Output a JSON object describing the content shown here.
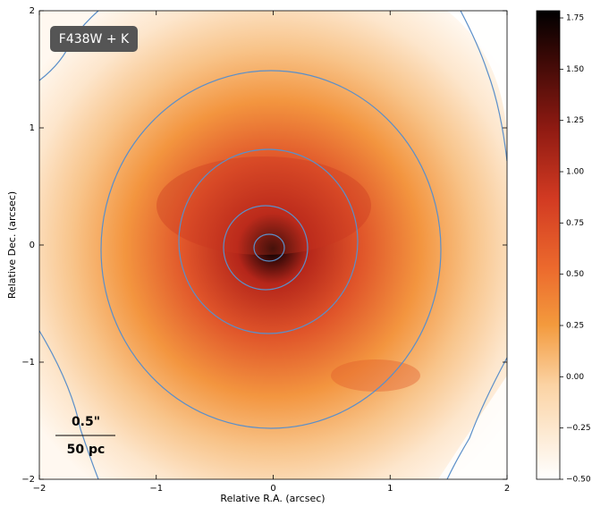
{
  "chart_data": {
    "type": "image",
    "label": "F438W + K",
    "scale_bar": {
      "angle": "0.5\"",
      "length": "50 pc"
    },
    "xlabel": "Relative R.A. (arcsec)",
    "ylabel": "Relative Dec. (arcsec)",
    "xlim": [
      -2,
      2
    ],
    "ylim": [
      -2,
      2
    ],
    "xticks": [
      {
        "value": -2,
        "label": "−2"
      },
      {
        "value": -1,
        "label": "−1"
      },
      0,
      1,
      2
    ],
    "yticks": [
      {
        "value": -2,
        "label": "−2"
      },
      {
        "value": -1,
        "label": "−1"
      },
      0,
      1,
      2
    ],
    "colorbar": {
      "ylim": [
        -0.5,
        1.785
      ],
      "yticks": [
        {
          "value": -0.5,
          "label": "−0.50"
        },
        {
          "value": -0.25,
          "label": "−0.25"
        },
        {
          "value": 0,
          "label": "0.00"
        },
        {
          "value": 0.25,
          "label": "0.25"
        },
        {
          "value": 0.5,
          "label": "0.50"
        },
        {
          "value": 0.75,
          "label": "0.75"
        },
        {
          "value": 1,
          "label": "1.00"
        },
        {
          "value": 1.25,
          "label": "1.25"
        },
        {
          "value": 1.5,
          "label": "1.50"
        },
        {
          "value": 1.75,
          "label": "1.75"
        }
      ]
    }
  }
}
